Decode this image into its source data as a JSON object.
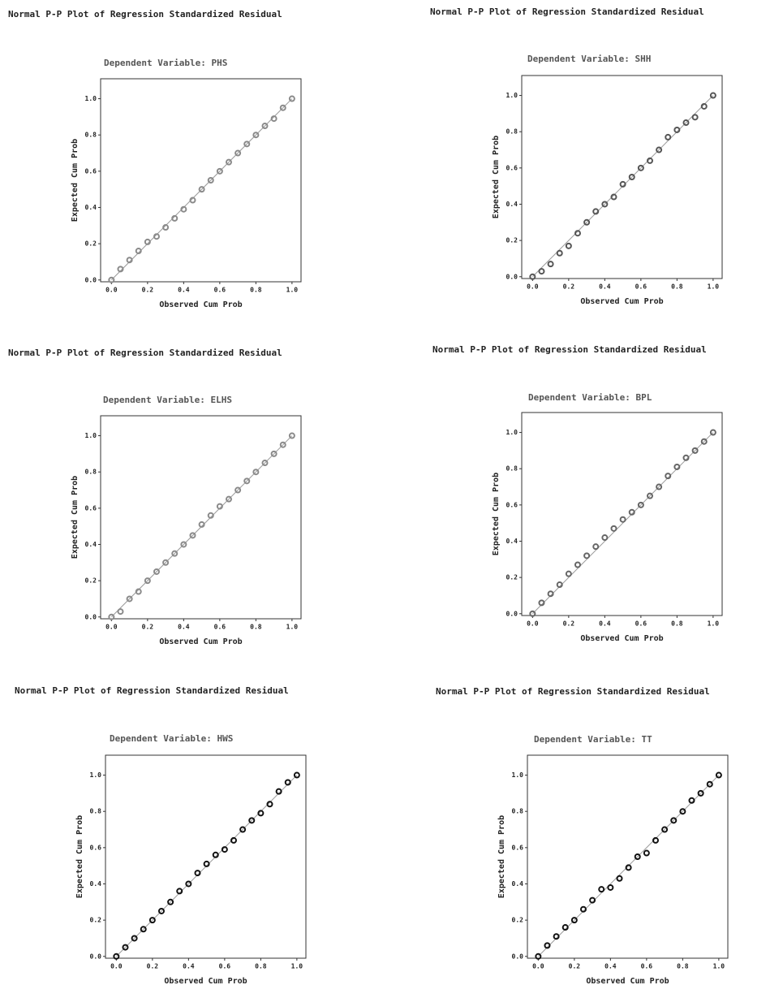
{
  "chart_data": [
    {
      "type": "scatter",
      "title": "Normal P-P Plot of Regression Standardized Residual",
      "subtitle": "Dependent Variable: PHS",
      "xlabel": "Observed Cum Prob",
      "ylabel": "Expected Cum Prob",
      "color": "#8a8a8a",
      "xlim": [
        -0.06,
        1.05
      ],
      "ylim": [
        -0.01,
        1.11
      ],
      "xticks": [
        {
          "value": 0,
          "label": "0.0"
        },
        0.2,
        0.4,
        0.6,
        0.8,
        {
          "value": 1,
          "label": "1.0"
        }
      ],
      "yticks": [
        {
          "value": 0,
          "label": "0.0"
        },
        0.2,
        0.4,
        0.6,
        0.8,
        {
          "value": 1,
          "label": "1.0"
        }
      ],
      "x": [
        0,
        0.05,
        0.1,
        0.15,
        0.2,
        0.25,
        0.3,
        0.35,
        0.4,
        0.45,
        0.5,
        0.55,
        0.6,
        0.65,
        0.7,
        0.75,
        0.8,
        0.85,
        0.9,
        0.95,
        1
      ],
      "values": [
        0,
        0.06,
        0.11,
        0.16,
        0.21,
        0.24,
        0.29,
        0.34,
        0.39,
        0.44,
        0.5,
        0.55,
        0.6,
        0.65,
        0.7,
        0.75,
        0.8,
        0.85,
        0.89,
        0.95,
        1
      ]
    },
    {
      "type": "scatter",
      "title": "Normal P-P Plot of Regression Standardized Residual",
      "subtitle": "Dependent Variable: SHH",
      "xlabel": "Observed Cum Prob",
      "ylabel": "Expected Cum Prob",
      "color": "#555555",
      "xlim": [
        -0.06,
        1.05
      ],
      "ylim": [
        -0.01,
        1.11
      ],
      "xticks": [
        {
          "value": 0,
          "label": "0.0"
        },
        0.2,
        0.4,
        0.6,
        0.8,
        {
          "value": 1,
          "label": "1.0"
        }
      ],
      "yticks": [
        {
          "value": 0,
          "label": "0.0"
        },
        0.2,
        0.4,
        0.6,
        0.8,
        {
          "value": 1,
          "label": "1.0"
        }
      ],
      "x": [
        0,
        0.05,
        0.1,
        0.15,
        0.2,
        0.25,
        0.3,
        0.35,
        0.4,
        0.45,
        0.5,
        0.55,
        0.6,
        0.65,
        0.7,
        0.75,
        0.8,
        0.85,
        0.9,
        0.95,
        1
      ],
      "values": [
        0,
        0.03,
        0.07,
        0.13,
        0.17,
        0.24,
        0.3,
        0.36,
        0.4,
        0.44,
        0.51,
        0.55,
        0.6,
        0.64,
        0.7,
        0.77,
        0.81,
        0.85,
        0.88,
        0.94,
        1
      ]
    },
    {
      "type": "scatter",
      "title": "Normal P-P Plot of Regression Standardized Residual",
      "subtitle": "Dependent Variable: ELHS",
      "xlabel": "Observed Cum Prob",
      "ylabel": "Expected Cum Prob",
      "color": "#8a8a8a",
      "xlim": [
        -0.06,
        1.05
      ],
      "ylim": [
        -0.01,
        1.11
      ],
      "xticks": [
        {
          "value": 0,
          "label": "0.0"
        },
        0.2,
        0.4,
        0.6,
        0.8,
        {
          "value": 1,
          "label": "1.0"
        }
      ],
      "yticks": [
        {
          "value": 0,
          "label": "0.0"
        },
        0.2,
        0.4,
        0.6,
        0.8,
        {
          "value": 1,
          "label": "1.0"
        }
      ],
      "x": [
        0,
        0.05,
        0.1,
        0.15,
        0.2,
        0.25,
        0.3,
        0.35,
        0.4,
        0.45,
        0.5,
        0.55,
        0.6,
        0.65,
        0.7,
        0.75,
        0.8,
        0.85,
        0.9,
        0.95,
        1
      ],
      "values": [
        0,
        0.03,
        0.1,
        0.14,
        0.2,
        0.25,
        0.3,
        0.35,
        0.4,
        0.45,
        0.51,
        0.56,
        0.61,
        0.65,
        0.7,
        0.75,
        0.8,
        0.85,
        0.9,
        0.95,
        1
      ]
    },
    {
      "type": "scatter",
      "title": "Normal P-P Plot of Regression Standardized Residual",
      "subtitle": "Dependent Variable: BPL",
      "xlabel": "Observed Cum Prob",
      "ylabel": "Expected Cum Prob",
      "color": "#666666",
      "xlim": [
        -0.06,
        1.05
      ],
      "ylim": [
        -0.01,
        1.11
      ],
      "xticks": [
        {
          "value": 0,
          "label": "0.0"
        },
        0.2,
        0.4,
        0.6,
        0.8,
        {
          "value": 1,
          "label": "1.0"
        }
      ],
      "yticks": [
        {
          "value": 0,
          "label": "0.0"
        },
        0.2,
        0.4,
        0.6,
        0.8,
        {
          "value": 1,
          "label": "1.0"
        }
      ],
      "x": [
        0,
        0.05,
        0.1,
        0.15,
        0.2,
        0.25,
        0.3,
        0.35,
        0.4,
        0.45,
        0.5,
        0.55,
        0.6,
        0.65,
        0.7,
        0.75,
        0.8,
        0.85,
        0.9,
        0.95,
        1
      ],
      "values": [
        0,
        0.06,
        0.11,
        0.16,
        0.22,
        0.27,
        0.32,
        0.37,
        0.42,
        0.47,
        0.52,
        0.56,
        0.6,
        0.65,
        0.7,
        0.76,
        0.81,
        0.86,
        0.9,
        0.95,
        1
      ]
    },
    {
      "type": "scatter",
      "title": "Normal P-P Plot of Regression Standardized Residual",
      "subtitle": "Dependent Variable: HWS",
      "xlabel": "Observed Cum Prob",
      "ylabel": "Expected Cum Prob",
      "color": "#111111",
      "xlim": [
        -0.06,
        1.05
      ],
      "ylim": [
        -0.01,
        1.11
      ],
      "xticks": [
        {
          "value": 0,
          "label": "0.0"
        },
        0.2,
        0.4,
        0.6,
        0.8,
        {
          "value": 1,
          "label": "1.0"
        }
      ],
      "yticks": [
        {
          "value": 0,
          "label": "0.0"
        },
        0.2,
        0.4,
        0.6,
        0.8,
        {
          "value": 1,
          "label": "1.0"
        }
      ],
      "x": [
        0,
        0.05,
        0.1,
        0.15,
        0.2,
        0.25,
        0.3,
        0.35,
        0.4,
        0.45,
        0.5,
        0.55,
        0.6,
        0.65,
        0.7,
        0.75,
        0.8,
        0.85,
        0.9,
        0.95,
        1
      ],
      "values": [
        0,
        0.05,
        0.1,
        0.15,
        0.2,
        0.25,
        0.3,
        0.36,
        0.4,
        0.46,
        0.51,
        0.56,
        0.59,
        0.64,
        0.7,
        0.75,
        0.79,
        0.84,
        0.91,
        0.96,
        1
      ]
    },
    {
      "type": "scatter",
      "title": "Normal P-P Plot of Regression Standardized Residual",
      "subtitle": "Dependent Variable: TT",
      "xlabel": "Observed Cum Prob",
      "ylabel": "Expected Cum Prob",
      "color": "#111111",
      "xlim": [
        -0.06,
        1.05
      ],
      "ylim": [
        -0.01,
        1.11
      ],
      "xticks": [
        {
          "value": 0,
          "label": "0.0"
        },
        0.2,
        0.4,
        0.6,
        0.8,
        {
          "value": 1,
          "label": "1.0"
        }
      ],
      "yticks": [
        {
          "value": 0,
          "label": "0.0"
        },
        0.2,
        0.4,
        0.6,
        0.8,
        {
          "value": 1,
          "label": "1.0"
        }
      ],
      "x": [
        0,
        0.05,
        0.1,
        0.15,
        0.2,
        0.25,
        0.3,
        0.35,
        0.4,
        0.45,
        0.5,
        0.55,
        0.6,
        0.65,
        0.7,
        0.75,
        0.8,
        0.85,
        0.9,
        0.95,
        1
      ],
      "values": [
        0,
        0.06,
        0.11,
        0.16,
        0.2,
        0.26,
        0.31,
        0.37,
        0.38,
        0.43,
        0.49,
        0.55,
        0.57,
        0.64,
        0.7,
        0.75,
        0.8,
        0.86,
        0.9,
        0.95,
        1
      ]
    }
  ]
}
